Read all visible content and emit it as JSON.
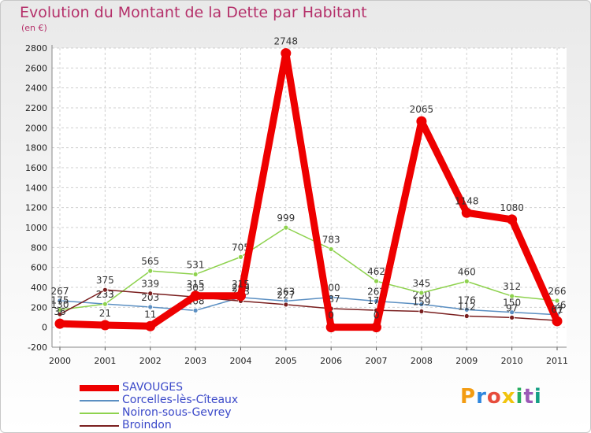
{
  "chart_data": {
    "type": "line",
    "title": "Evolution du Montant de la Dette par Habitant",
    "subtitle": "(en €)",
    "xlabel": "",
    "ylabel": "",
    "categories": [
      "2000",
      "2001",
      "2002",
      "2003",
      "2004",
      "2005",
      "2006",
      "2007",
      "2008",
      "2009",
      "2010",
      "2011"
    ],
    "ylim": [
      -200,
      2800
    ],
    "yticks": [
      -200,
      0,
      200,
      400,
      600,
      800,
      1000,
      1200,
      1400,
      1600,
      1800,
      2000,
      2200,
      2400,
      2600,
      2800
    ],
    "grid": true,
    "legend_position": "bottom-left",
    "series": [
      {
        "name": "SAVOUGES",
        "color": "#ee0000",
        "values": [
          36,
          21,
          11,
          315,
          315,
          2748,
          0,
          0,
          2065,
          1148,
          1080,
          61
        ]
      },
      {
        "name": "Corcelles-lès-Cîteaux",
        "color": "#5b8fc2",
        "values": [
          267,
          233,
          203,
          168,
          299,
          263,
          300,
          262,
          230,
          176,
          150,
          126
        ]
      },
      {
        "name": "Noiron-sous-Gevrey",
        "color": "#8ed24e",
        "values": [
          175,
          233,
          565,
          531,
          705,
          999,
          783,
          462,
          345,
          460,
          312,
          266
        ]
      },
      {
        "name": "Broindon",
        "color": "#7a1f1f",
        "values": [
          130,
          375,
          339,
          303,
          263,
          227,
          187,
          170,
          159,
          112,
          97,
          67
        ]
      }
    ]
  },
  "brand": {
    "text": "Proxiti",
    "colors": [
      "#f39c12",
      "#2e86de",
      "#e74c3c",
      "#f1c40f",
      "#27ae60",
      "#9b59b6",
      "#16a085"
    ]
  }
}
